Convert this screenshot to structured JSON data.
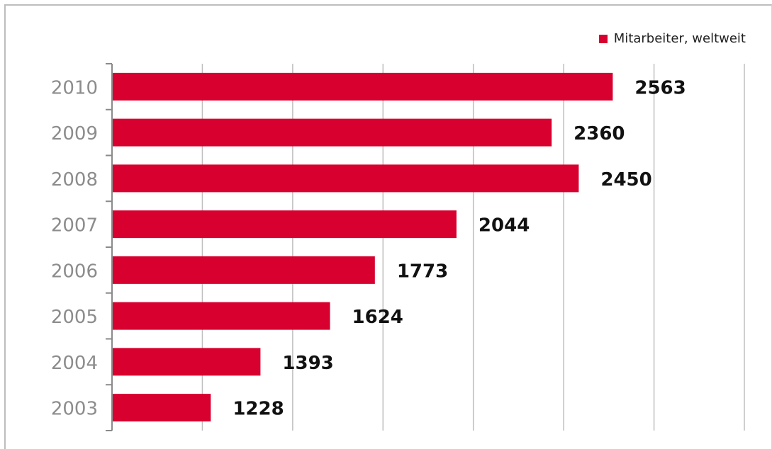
{
  "chart_data": {
    "type": "bar",
    "orientation": "horizontal",
    "categories": [
      "2010",
      "2009",
      "2008",
      "2007",
      "2006",
      "2005",
      "2004",
      "2003"
    ],
    "series": [
      {
        "name": "Mitarbeiter, weltweit",
        "values": [
          2563,
          2360,
          2450,
          2044,
          1773,
          1624,
          1393,
          1228
        ]
      }
    ],
    "data_labels": [
      "2563",
      "2360",
      "2450",
      "2044",
      "1773",
      "1624",
      "1393",
      "1228"
    ],
    "xlim": [
      900,
      3000
    ],
    "grid": true,
    "legend": "top-right",
    "colors": {
      "bar": "#d7002f",
      "grid": "#bfbfbf",
      "axis": "#8a8a8a",
      "category_label": "#8c8c8c",
      "value_label": "#111111"
    }
  }
}
